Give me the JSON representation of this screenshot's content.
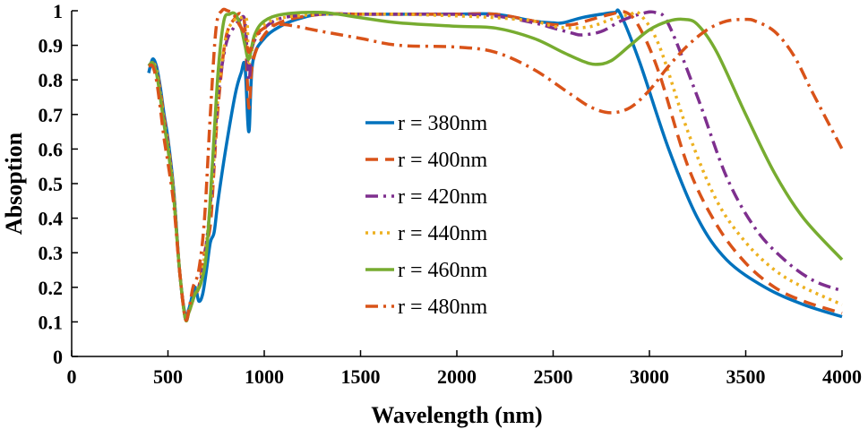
{
  "chart_data": {
    "type": "line",
    "title": "",
    "xlabel": "Wavelength (nm)",
    "ylabel": "Absoption",
    "xlim": [
      0,
      4000
    ],
    "ylim": [
      0,
      1
    ],
    "xticks": [
      "0",
      "500",
      "1000",
      "1500",
      "2000",
      "2500",
      "3000",
      "3500",
      "4000"
    ],
    "yticks": [
      "0",
      "0.1",
      "0.2",
      "0.3",
      "0.4",
      "0.5",
      "0.6",
      "0.7",
      "0.8",
      "0.9",
      "1"
    ],
    "grid": false,
    "legend_position": "center",
    "series": [
      {
        "name": "r = 380nm",
        "color": "#0072BD",
        "dash": "solid",
        "x": [
          400,
          420,
          440,
          460,
          480,
          500,
          530,
          560,
          590,
          610,
          640,
          660,
          680,
          700,
          720,
          740,
          760,
          800,
          850,
          880,
          900,
          920,
          940,
          1000,
          1100,
          1200,
          1300,
          1500,
          1700,
          2000,
          2200,
          2400,
          2500,
          2550,
          2650,
          2750,
          2820,
          2850,
          2950,
          3100,
          3250,
          3400,
          3600,
          3800,
          4000
        ],
        "y": [
          0.82,
          0.86,
          0.84,
          0.78,
          0.7,
          0.63,
          0.48,
          0.25,
          0.12,
          0.14,
          0.2,
          0.16,
          0.18,
          0.25,
          0.33,
          0.36,
          0.45,
          0.6,
          0.76,
          0.82,
          0.84,
          0.65,
          0.85,
          0.92,
          0.96,
          0.98,
          0.99,
          0.99,
          0.99,
          0.99,
          0.99,
          0.97,
          0.965,
          0.965,
          0.98,
          0.99,
          0.995,
          0.99,
          0.85,
          0.6,
          0.4,
          0.28,
          0.2,
          0.15,
          0.115
        ]
      },
      {
        "name": "r = 400nm",
        "color": "#D95319",
        "dash": "dashed",
        "x": [
          400,
          420,
          440,
          460,
          480,
          500,
          530,
          560,
          590,
          610,
          640,
          660,
          690,
          720,
          740,
          760,
          800,
          850,
          880,
          900,
          920,
          940,
          1000,
          1100,
          1300,
          1500,
          1700,
          2000,
          2200,
          2400,
          2500,
          2600,
          2700,
          2800,
          2880,
          2950,
          3050,
          3200,
          3350,
          3500,
          3650,
          3800,
          4000
        ],
        "y": [
          0.84,
          0.85,
          0.83,
          0.77,
          0.69,
          0.62,
          0.47,
          0.25,
          0.11,
          0.13,
          0.18,
          0.2,
          0.3,
          0.38,
          0.55,
          0.72,
          0.92,
          0.98,
          0.99,
          0.95,
          0.72,
          0.85,
          0.93,
          0.97,
          0.99,
          0.99,
          0.99,
          0.99,
          0.99,
          0.97,
          0.96,
          0.96,
          0.975,
          0.99,
          0.995,
          0.95,
          0.82,
          0.55,
          0.38,
          0.27,
          0.2,
          0.16,
          0.125
        ]
      },
      {
        "name": "r = 420nm",
        "color": "#7E2F8E",
        "dash": "dashdot",
        "x": [
          400,
          420,
          440,
          460,
          480,
          500,
          530,
          560,
          590,
          610,
          640,
          670,
          700,
          730,
          760,
          800,
          840,
          870,
          900,
          920,
          940,
          1000,
          1100,
          1300,
          1500,
          1700,
          2000,
          2200,
          2400,
          2500,
          2600,
          2650,
          2750,
          2850,
          2950,
          3030,
          3100,
          3250,
          3400,
          3550,
          3700,
          3850,
          4000
        ],
        "y": [
          0.84,
          0.85,
          0.83,
          0.76,
          0.68,
          0.61,
          0.47,
          0.25,
          0.11,
          0.13,
          0.18,
          0.22,
          0.33,
          0.5,
          0.75,
          0.9,
          0.95,
          0.97,
          0.97,
          0.8,
          0.9,
          0.95,
          0.98,
          0.99,
          0.99,
          0.99,
          0.99,
          0.985,
          0.965,
          0.95,
          0.935,
          0.93,
          0.94,
          0.97,
          0.99,
          0.995,
          0.96,
          0.75,
          0.52,
          0.37,
          0.28,
          0.22,
          0.19
        ]
      },
      {
        "name": "r = 440nm",
        "color": "#EDB120",
        "dash": "dotted",
        "x": [
          400,
          420,
          440,
          460,
          480,
          500,
          530,
          560,
          590,
          610,
          640,
          670,
          700,
          730,
          760,
          800,
          840,
          880,
          910,
          920,
          950,
          1000,
          1100,
          1300,
          1500,
          1700,
          2000,
          2200,
          2400,
          2500,
          2600,
          2700,
          2800,
          2900,
          2950,
          3050,
          3200,
          3350,
          3500,
          3650,
          3800,
          4000
        ],
        "y": [
          0.84,
          0.85,
          0.83,
          0.76,
          0.68,
          0.61,
          0.47,
          0.25,
          0.11,
          0.13,
          0.18,
          0.22,
          0.33,
          0.5,
          0.75,
          0.92,
          0.97,
          0.98,
          0.97,
          0.85,
          0.92,
          0.96,
          0.98,
          0.99,
          0.99,
          0.99,
          0.985,
          0.98,
          0.97,
          0.955,
          0.95,
          0.955,
          0.975,
          0.99,
          0.99,
          0.9,
          0.65,
          0.45,
          0.33,
          0.25,
          0.2,
          0.15
        ]
      },
      {
        "name": "r = 460nm",
        "color": "#77AC30",
        "dash": "solid",
        "x": [
          400,
          420,
          440,
          460,
          480,
          500,
          530,
          560,
          590,
          610,
          640,
          670,
          700,
          730,
          760,
          790,
          820,
          850,
          880,
          900,
          920,
          950,
          1000,
          1100,
          1300,
          1500,
          1700,
          2000,
          2200,
          2400,
          2550,
          2650,
          2720,
          2800,
          2900,
          3000,
          3100,
          3180,
          3250,
          3350,
          3500,
          3650,
          3800,
          4000
        ],
        "y": [
          0.84,
          0.85,
          0.82,
          0.75,
          0.67,
          0.6,
          0.46,
          0.25,
          0.11,
          0.13,
          0.18,
          0.21,
          0.3,
          0.55,
          0.82,
          0.97,
          0.99,
          0.99,
          0.95,
          0.9,
          0.86,
          0.93,
          0.97,
          0.99,
          0.995,
          0.98,
          0.965,
          0.955,
          0.95,
          0.92,
          0.88,
          0.855,
          0.845,
          0.855,
          0.9,
          0.945,
          0.97,
          0.975,
          0.96,
          0.88,
          0.7,
          0.53,
          0.4,
          0.28
        ]
      },
      {
        "name": "r = 480nm",
        "color": "#D95319",
        "dash": "dashdot",
        "x": [
          400,
          420,
          440,
          460,
          480,
          500,
          530,
          560,
          590,
          610,
          630,
          660,
          690,
          720,
          750,
          780,
          810,
          840,
          870,
          900,
          920,
          950,
          1000,
          1100,
          1300,
          1500,
          1700,
          2000,
          2200,
          2400,
          2600,
          2700,
          2800,
          2900,
          3000,
          3100,
          3200,
          3300,
          3400,
          3500,
          3550,
          3650,
          3750,
          3850,
          4000
        ],
        "y": [
          0.84,
          0.84,
          0.8,
          0.72,
          0.63,
          0.56,
          0.44,
          0.25,
          0.11,
          0.14,
          0.2,
          0.25,
          0.4,
          0.7,
          0.95,
          1.0,
          1.0,
          0.99,
          0.96,
          0.93,
          0.88,
          0.92,
          0.95,
          0.96,
          0.94,
          0.92,
          0.9,
          0.895,
          0.88,
          0.83,
          0.755,
          0.72,
          0.705,
          0.72,
          0.77,
          0.84,
          0.9,
          0.945,
          0.97,
          0.975,
          0.97,
          0.94,
          0.87,
          0.76,
          0.6
        ]
      }
    ]
  }
}
